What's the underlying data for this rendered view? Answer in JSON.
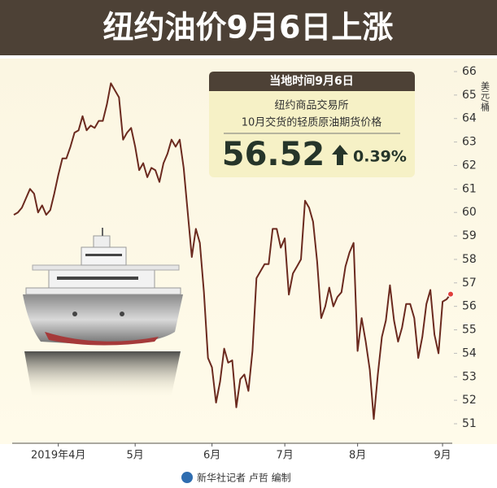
{
  "chart_data": {
    "type": "line",
    "title": "纽约油价9月6日上涨",
    "y_label": "美元/桶",
    "box_header": "当地时间9月6日",
    "box_line1": "纽约商品交易所",
    "box_line2": "10月交货的轻质原油期货价格",
    "change_label": "0.39%",
    "credit": "新华社记者 卢哲 编制",
    "color": "#6b2a1f",
    "end_color": "#e0403a",
    "categories": [
      null,
      null,
      null,
      null,
      null,
      null,
      null,
      null,
      null,
      null,
      null,
      "2019年4月",
      null,
      null,
      null,
      null,
      null,
      null,
      null,
      null,
      null,
      null,
      null,
      null,
      null,
      null,
      null,
      null,
      null,
      null,
      "5月",
      null,
      null,
      null,
      null,
      null,
      null,
      null,
      null,
      null,
      null,
      null,
      null,
      null,
      null,
      null,
      null,
      null,
      null,
      "6月",
      null,
      null,
      null,
      null,
      null,
      null,
      null,
      null,
      null,
      null,
      null,
      null,
      null,
      null,
      null,
      null,
      null,
      "7月",
      null,
      null,
      null,
      null,
      null,
      null,
      null,
      null,
      null,
      null,
      null,
      null,
      null,
      null,
      null,
      null,
      null,
      "8月",
      null,
      null,
      null,
      null,
      null,
      null,
      null,
      null,
      null,
      null,
      null,
      null,
      null,
      null,
      null,
      null,
      null,
      null,
      null,
      null,
      "9月",
      null,
      null
    ],
    "values": [
      59.9,
      60.0,
      60.2,
      60.6,
      61.0,
      60.8,
      60.0,
      60.3,
      59.9,
      60.1,
      60.8,
      61.6,
      62.3,
      62.3,
      62.8,
      63.4,
      63.5,
      64.1,
      63.5,
      63.7,
      63.6,
      63.9,
      63.9,
      64.6,
      65.5,
      65.2,
      64.9,
      63.1,
      63.4,
      63.6,
      62.8,
      61.8,
      62.1,
      61.5,
      61.9,
      61.8,
      61.3,
      62.1,
      62.5,
      63.1,
      62.8,
      63.1,
      61.9,
      60.0,
      58.1,
      59.3,
      58.7,
      56.6,
      53.8,
      53.4,
      51.9,
      52.8,
      54.2,
      53.6,
      53.7,
      51.7,
      52.9,
      53.1,
      52.4,
      54.1,
      57.2,
      57.5,
      57.8,
      57.8,
      59.3,
      59.3,
      58.5,
      58.9,
      56.5,
      57.4,
      57.7,
      58.0,
      60.5,
      60.2,
      59.6,
      57.9,
      55.5,
      56.0,
      56.8,
      56.0,
      56.4,
      56.6,
      57.7,
      58.3,
      58.7,
      54.1,
      55.5,
      54.5,
      53.3,
      51.2,
      53.1,
      54.7,
      55.4,
      56.9,
      55.4,
      54.5,
      55.1,
      56.1,
      56.1,
      55.5,
      53.8,
      54.7,
      56.1,
      56.7,
      54.8,
      54.0,
      56.2,
      56.3,
      56.52
    ],
    "ylim": [
      50.5,
      66
    ],
    "yticks": [
      51,
      52,
      53,
      54,
      55,
      56,
      57,
      58,
      59,
      60,
      61,
      62,
      63,
      64,
      65,
      66
    ]
  }
}
